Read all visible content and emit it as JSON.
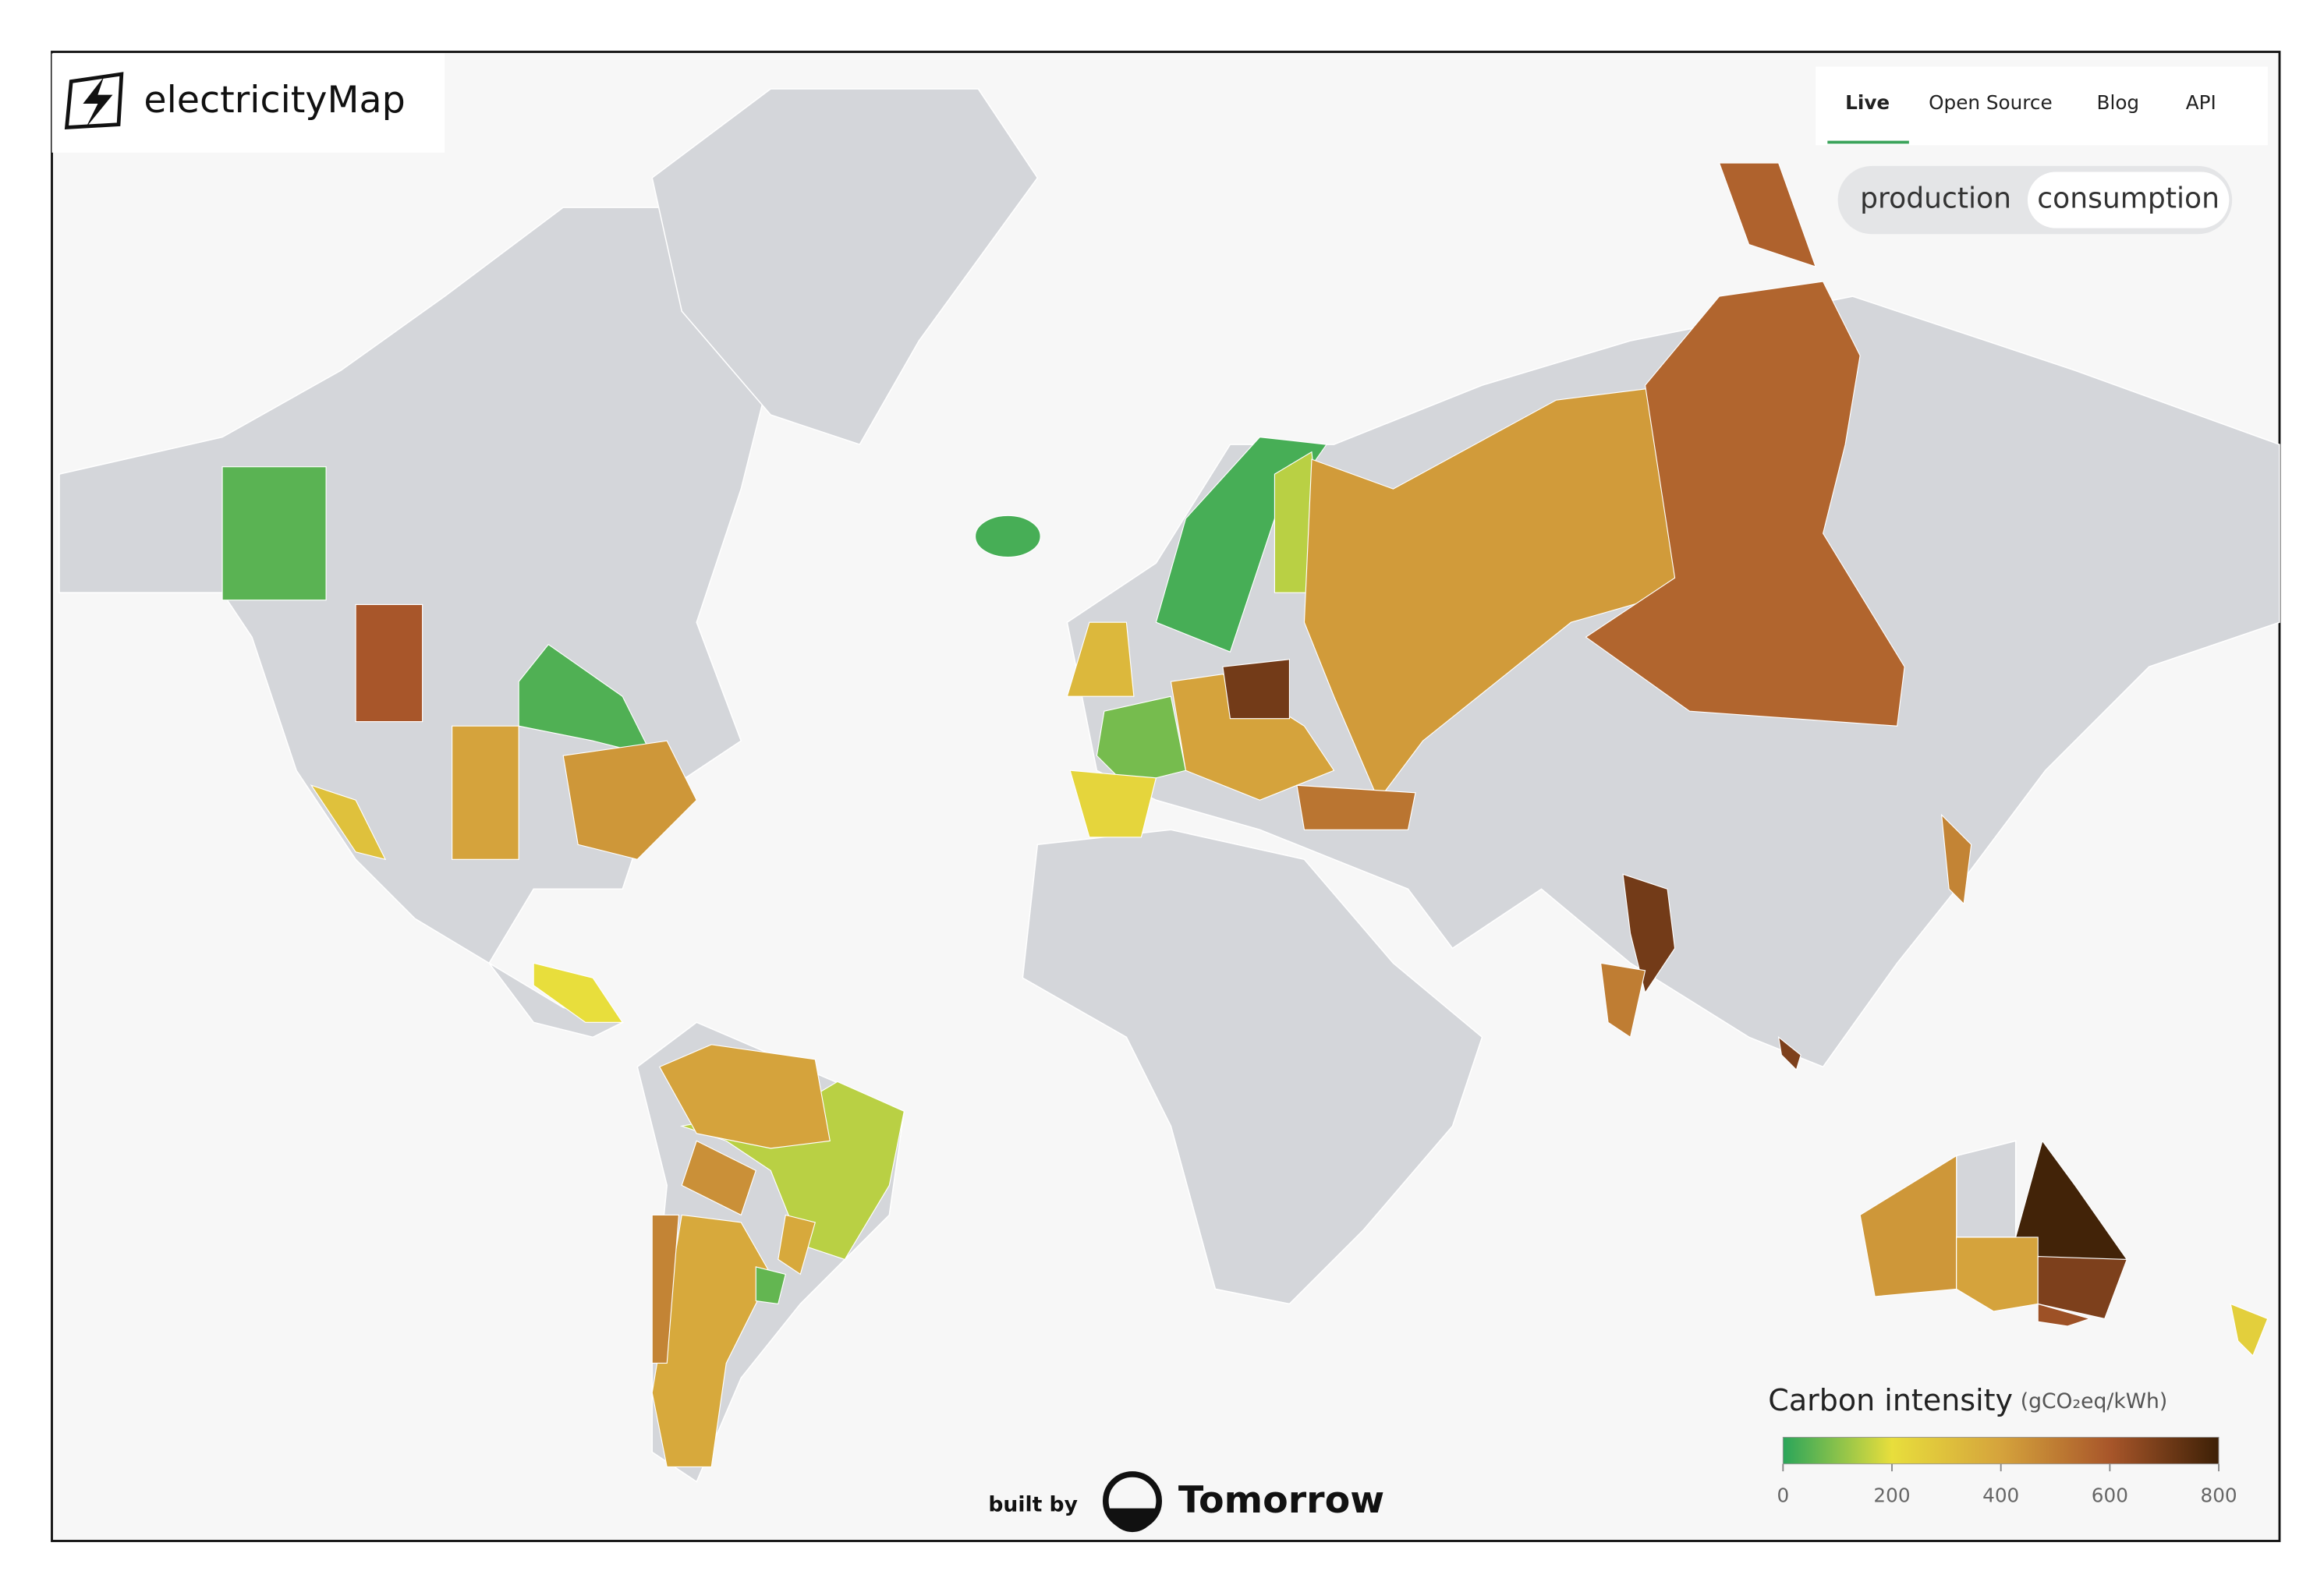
{
  "header": {
    "logo": "electricityMap"
  },
  "nav": {
    "tabs": [
      "Live",
      "Open Source",
      "Blog",
      "API"
    ],
    "active": 0
  },
  "toggle": {
    "options": [
      "production",
      "consumption"
    ],
    "active": 1
  },
  "legend": {
    "title": "Carbon intensity",
    "unit": "(gCO₂eq/kWh)",
    "lim": [
      0,
      800
    ],
    "ticks": [
      0,
      200,
      400,
      600,
      800
    ],
    "colors": [
      "#2aa55a",
      "#e8de3c",
      "#d5a33c",
      "#a8562a",
      "#3d2006"
    ]
  },
  "map": {
    "intensities": [
      50,
      600,
      40,
      430,
      400,
      300,
      30,
      30,
      150,
      330,
      80,
      230,
      700,
      400,
      420,
      560,
      570,
      520,
      700,
      500,
      480,
      680,
      150,
      400,
      450,
      380,
      480,
      60,
      380,
      430,
      790,
      400,
      680,
      620,
      250,
      200
    ]
  },
  "footer": {
    "built_by": "built by",
    "brand": "Tomorrow"
  }
}
